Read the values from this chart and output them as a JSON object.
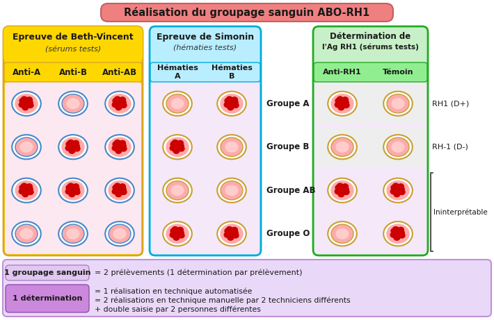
{
  "title": "Réalisation du groupage sanguin ABO-RH1",
  "title_bg": "#f08080",
  "title_color": "#1a1a1a",
  "section1_title": "Epreuve de Beth-Vincent",
  "section1_subtitle": "(sérums tests)",
  "section1_bg": "#ffd700",
  "section1_border": "#daa520",
  "section1_inner": "#fce8f0",
  "section1_cols": [
    "Anti-A",
    "Anti-B",
    "Anti-AB"
  ],
  "section1_col_bg": "#ffd700",
  "section2_title": "Epreuve de Simonin",
  "section2_subtitle": "(hématies tests)",
  "section2_bg": "#b8eeff",
  "section2_border": "#00aadd",
  "section2_inner": "#f5e8f8",
  "section2_cols": [
    "Hématies\nA",
    "Hématies\nB"
  ],
  "section2_col_bg": "#80d8f0",
  "section3_title": "Détermination de",
  "section3_title2": "l'Ag RH1 (sérums tests)",
  "section3_bg": "#c8f0c8",
  "section3_border": "#22aa22",
  "section3_inner": "#f5e8f8",
  "section3_cols": [
    "Anti-RH1",
    "Témoin"
  ],
  "section3_col_bg": "#90ee90",
  "groups": [
    "Groupe A",
    "Groupe B",
    "Groupe AB",
    "Groupe O"
  ],
  "rh_labels": [
    "RH1 (D+)",
    "RH-1 (D-)",
    "Ininterprétable"
  ],
  "note1_label": "1 groupage sanguin",
  "note1_text": "= 2 prélèvements (1 détermination par prélèvement)",
  "note1_bg": "#e0c8f0",
  "note2_label": "1 détermination",
  "note2_text": "= 1 réalisation en technique automatisée\n= 2 réalisations en technique manuelle par 2 techniciens différents\n+ double saisie par 2 personnes différentes",
  "note2_bg": "#cc88dd",
  "note_outer_bg": "#ead8f8",
  "bg_color": "#ffffff",
  "s1_patterns": [
    [
      true,
      false,
      true
    ],
    [
      false,
      true,
      true
    ],
    [
      true,
      true,
      true
    ],
    [
      false,
      false,
      false
    ]
  ],
  "s2_patterns": [
    [
      false,
      true
    ],
    [
      true,
      false
    ],
    [
      false,
      false
    ],
    [
      true,
      true
    ]
  ],
  "s3_patterns": [
    [
      true,
      false
    ],
    [
      false,
      false
    ],
    [
      true,
      true
    ],
    [
      false,
      true
    ]
  ]
}
